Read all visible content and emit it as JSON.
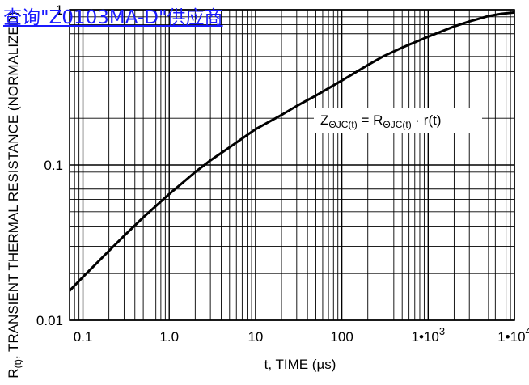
{
  "watermark": {
    "text": "查询\"Z0103MA-D\"供应商"
  },
  "chart_data": {
    "type": "line",
    "xscale": "log",
    "yscale": "log",
    "xlim": [
      0.07,
      10000
    ],
    "ylim": [
      0.01,
      1.0
    ],
    "grid": true,
    "xlabel": "t, TIME (µs)",
    "ylabel_main": "R",
    "ylabel_sub": "(t)",
    "ylabel_rest": ", TRANSIENT THERMAL RESISTANCE (NORMALIZED)",
    "x_ticks": [
      {
        "value": 0.1,
        "label": "0.1"
      },
      {
        "value": 1,
        "label": "1.0"
      },
      {
        "value": 10,
        "label": "10"
      },
      {
        "value": 100,
        "label": "100"
      },
      {
        "value": 1000,
        "label": "1•10",
        "sup": "3"
      },
      {
        "value": 10000,
        "label": "1•10",
        "sup": "4"
      }
    ],
    "y_ticks": [
      {
        "value": 0.01,
        "label": "0.01"
      },
      {
        "value": 0.1,
        "label": "0.1"
      },
      {
        "value": 1,
        "label": "1"
      }
    ],
    "annotation": {
      "x": 600,
      "y": 0.265,
      "z": "Z",
      "z_sub": "ΘJC(t)",
      "eq": " = ",
      "r": "R",
      "r_sub": "ΘJC(t)",
      "rest": " · r(t)"
    },
    "series": [
      {
        "x": [
          0.07,
          0.1,
          0.2,
          0.3,
          0.5,
          1,
          2,
          3,
          5,
          10,
          20,
          30,
          50,
          100,
          200,
          300,
          500,
          1000,
          2000,
          3000,
          5000,
          7000,
          10000
        ],
        "y": [
          0.0155,
          0.019,
          0.028,
          0.035,
          0.046,
          0.065,
          0.09,
          0.107,
          0.13,
          0.17,
          0.21,
          0.24,
          0.28,
          0.35,
          0.44,
          0.5,
          0.57,
          0.67,
          0.78,
          0.84,
          0.91,
          0.94,
          0.96
        ]
      }
    ]
  }
}
